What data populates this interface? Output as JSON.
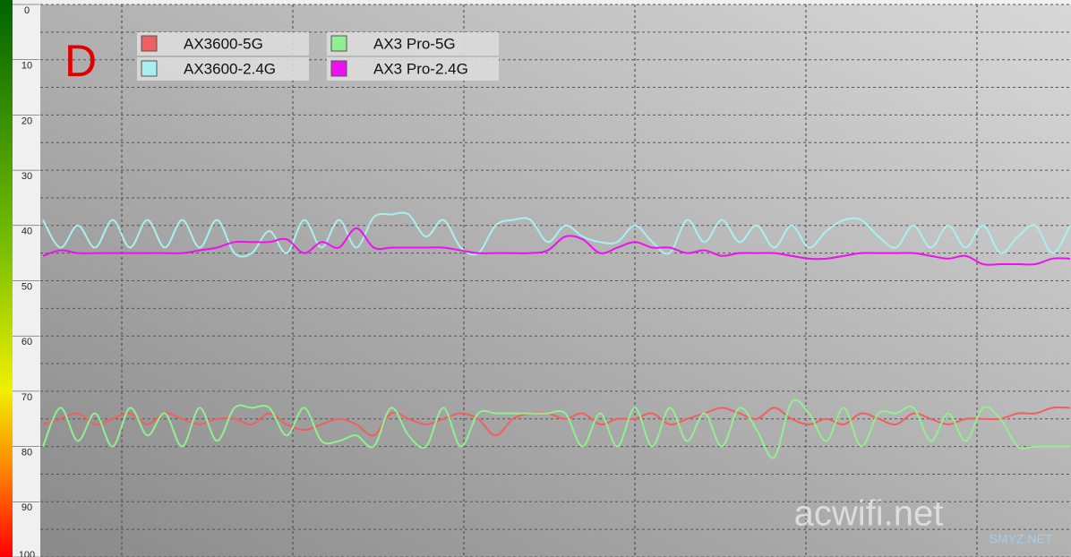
{
  "chart_data": {
    "type": "line",
    "annotation": "D",
    "watermarks": [
      "acwifi.net",
      "SMYZ.NET"
    ],
    "ylim": [
      0,
      100
    ],
    "inverted": true,
    "yticks": [
      0,
      10,
      20,
      30,
      40,
      50,
      60,
      70,
      80,
      90,
      100
    ],
    "y_minor_grid": [
      5,
      15,
      25,
      35,
      45,
      55,
      65,
      75,
      85,
      95
    ],
    "grid": true,
    "series": [
      {
        "name": "AX3600-5G",
        "color": "#f06060",
        "values": [
          76,
          75,
          74,
          76,
          75,
          74,
          76,
          74,
          75,
          76,
          75,
          75,
          76,
          74,
          76,
          77,
          76,
          75,
          76,
          78,
          74,
          75,
          76,
          75,
          74,
          75,
          78,
          75,
          74,
          74,
          75,
          74,
          76,
          75,
          75,
          74,
          76,
          75,
          74,
          73,
          74,
          75,
          73,
          75,
          76,
          75,
          76,
          74,
          75,
          76,
          74,
          75,
          76,
          75,
          75,
          75,
          74,
          74,
          73,
          73
        ]
      },
      {
        "name": "AX3600-2.4G",
        "color": "#a8f0f0",
        "values": [
          39,
          44,
          40,
          44,
          39,
          44,
          39,
          44,
          39,
          44,
          39,
          45,
          45,
          41,
          45,
          39,
          44,
          39,
          44,
          38.5,
          38,
          38,
          42,
          39,
          44,
          45,
          40,
          39,
          39,
          43,
          40,
          42,
          43,
          43,
          40,
          43,
          45,
          39,
          43,
          39,
          43,
          40,
          44,
          40,
          44,
          41,
          39,
          39,
          42,
          44,
          40,
          44,
          40,
          44,
          40,
          45,
          42,
          40,
          45,
          40
        ]
      },
      {
        "name": "AX3 Pro-5G",
        "color": "#90f090",
        "values": [
          80,
          73,
          79,
          74,
          80,
          73,
          78,
          74,
          80,
          73,
          79,
          73,
          73,
          73,
          78,
          73,
          79,
          79,
          78,
          80,
          73,
          78,
          80,
          73,
          80,
          74,
          74,
          74,
          74,
          74,
          74,
          80,
          74,
          80,
          73,
          80,
          73,
          79,
          74,
          80,
          73,
          77,
          82,
          72,
          74,
          79,
          73,
          80,
          74,
          74,
          73,
          79,
          74,
          79,
          73,
          75,
          80,
          80,
          80,
          80
        ]
      },
      {
        "name": "AX3 Pro-2.4G",
        "color": "#ee10ee",
        "values": [
          45.5,
          44.5,
          45,
          45,
          45,
          45,
          45,
          45,
          45,
          44.5,
          44,
          43,
          43,
          43,
          42.5,
          45,
          43,
          44,
          40.5,
          44,
          44,
          44,
          44,
          44,
          44.5,
          45,
          45,
          45,
          45,
          44.5,
          42,
          42.5,
          45,
          44,
          43,
          44,
          44,
          45,
          44.5,
          45.5,
          45,
          45,
          45,
          45.5,
          46,
          46,
          45.5,
          45,
          45,
          45,
          45,
          45.5,
          46,
          45.5,
          47,
          47,
          47,
          47,
          46,
          46
        ]
      }
    ]
  }
}
